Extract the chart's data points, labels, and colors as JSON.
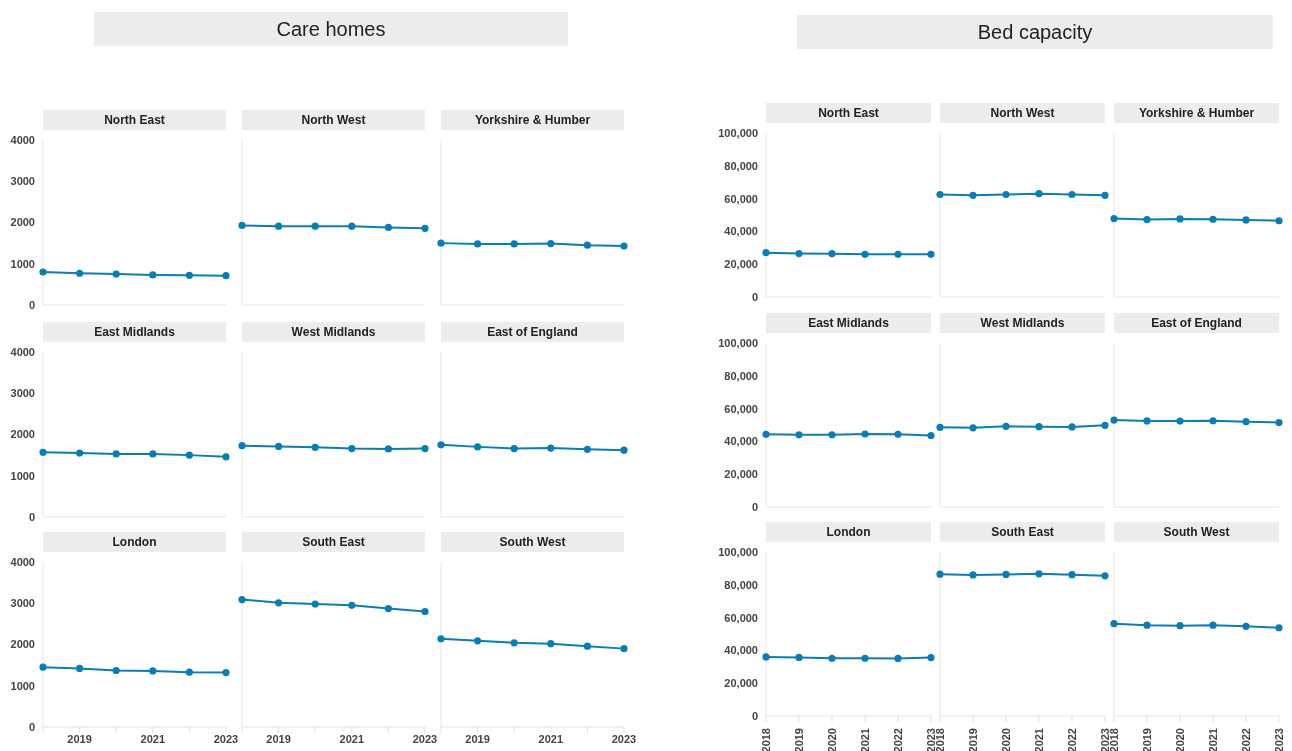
{
  "chart_data": [
    {
      "type": "other",
      "title": "Care homes"
    },
    {
      "type": "line",
      "title": "North East",
      "x": [
        2018,
        2019,
        2020,
        2021,
        2022,
        2023
      ],
      "values": [
        800,
        770,
        750,
        730,
        720,
        710
      ],
      "color": "#0b7db3",
      "marker": "circle",
      "xlim": [
        2018,
        2023
      ],
      "ylim": [
        0,
        4000
      ],
      "yticks": [
        0,
        1000,
        2000,
        3000,
        4000
      ],
      "tick_labels": "y"
    },
    {
      "type": "line",
      "title": "North West",
      "x": [
        2018,
        2019,
        2020,
        2021,
        2022,
        2023
      ],
      "values": [
        1930,
        1910,
        1910,
        1910,
        1880,
        1860
      ],
      "color": "#0b7db3",
      "marker": "circle",
      "xlim": [
        2018,
        2023
      ],
      "ylim": [
        0,
        4000
      ],
      "tick_labels": false
    },
    {
      "type": "line",
      "title": "Yorkshire & Humber",
      "x": [
        2018,
        2019,
        2020,
        2021,
        2022,
        2023
      ],
      "values": [
        1500,
        1480,
        1480,
        1490,
        1450,
        1430
      ],
      "color": "#0b7db3",
      "marker": "circle",
      "xlim": [
        2018,
        2023
      ],
      "ylim": [
        0,
        4000
      ],
      "tick_labels": false
    },
    {
      "type": "line",
      "title": "East Midlands",
      "x": [
        2018,
        2019,
        2020,
        2021,
        2022,
        2023
      ],
      "values": [
        1570,
        1550,
        1530,
        1530,
        1500,
        1460
      ],
      "color": "#0b7db3",
      "marker": "circle",
      "xlim": [
        2018,
        2023
      ],
      "ylim": [
        0,
        4000
      ],
      "yticks": [
        0,
        1000,
        2000,
        3000,
        4000
      ],
      "tick_labels": "y"
    },
    {
      "type": "line",
      "title": "West Midlands",
      "x": [
        2018,
        2019,
        2020,
        2021,
        2022,
        2023
      ],
      "values": [
        1730,
        1710,
        1690,
        1660,
        1650,
        1660
      ],
      "color": "#0b7db3",
      "marker": "circle",
      "xlim": [
        2018,
        2023
      ],
      "ylim": [
        0,
        4000
      ],
      "tick_labels": false
    },
    {
      "type": "line",
      "title": "East of England",
      "x": [
        2018,
        2019,
        2020,
        2021,
        2022,
        2023
      ],
      "values": [
        1750,
        1700,
        1660,
        1670,
        1640,
        1620
      ],
      "color": "#0b7db3",
      "marker": "circle",
      "xlim": [
        2018,
        2023
      ],
      "ylim": [
        0,
        4000
      ],
      "tick_labels": false
    },
    {
      "type": "line",
      "title": "London",
      "x": [
        2018,
        2019,
        2020,
        2021,
        2022,
        2023
      ],
      "values": [
        1450,
        1420,
        1370,
        1360,
        1330,
        1320
      ],
      "color": "#0b7db3",
      "marker": "circle",
      "xlim": [
        2018,
        2023
      ],
      "xticks": [
        {
          "value": 2018,
          "label": null
        },
        2019,
        {
          "value": 2020,
          "label": null
        },
        2021,
        {
          "value": 2022,
          "label": null
        },
        2023
      ],
      "ylim": [
        0,
        4000
      ],
      "yticks": [
        0,
        1000,
        2000,
        3000,
        4000
      ]
    },
    {
      "type": "line",
      "title": "South East",
      "x": [
        2018,
        2019,
        2020,
        2021,
        2022,
        2023
      ],
      "values": [
        3090,
        3010,
        2980,
        2950,
        2870,
        2800
      ],
      "color": "#0b7db3",
      "marker": "circle",
      "xlim": [
        2018,
        2023
      ],
      "xticks": [
        {
          "value": 2018,
          "label": null
        },
        2019,
        {
          "value": 2020,
          "label": null
        },
        2021,
        {
          "value": 2022,
          "label": null
        },
        2023
      ],
      "ylim": [
        0,
        4000
      ],
      "tick_labels": "x"
    },
    {
      "type": "line",
      "title": "South West",
      "x": [
        2018,
        2019,
        2020,
        2021,
        2022,
        2023
      ],
      "values": [
        2140,
        2090,
        2040,
        2020,
        1960,
        1900
      ],
      "color": "#0b7db3",
      "marker": "circle",
      "xlim": [
        2018,
        2023
      ],
      "xticks": [
        {
          "value": 2018,
          "label": null
        },
        2019,
        {
          "value": 2020,
          "label": null
        },
        2021,
        {
          "value": 2022,
          "label": null
        },
        2023
      ],
      "ylim": [
        0,
        4000
      ],
      "tick_labels": "x"
    },
    {
      "type": "other",
      "title": "Bed capacity"
    },
    {
      "type": "line",
      "title": "North East",
      "x": [
        2018,
        2019,
        2020,
        2021,
        2022,
        2023
      ],
      "values": [
        27000,
        26500,
        26400,
        26000,
        26000,
        26000
      ],
      "color": "#0b7db3",
      "marker": "circle",
      "xlim": [
        2018,
        2023
      ],
      "ylim": [
        0,
        100000
      ],
      "yticks": [
        0,
        {
          "value": 20000,
          "label": "20,000"
        },
        {
          "value": 40000,
          "label": "40,000"
        },
        {
          "value": 60000,
          "label": "60,000"
        },
        {
          "value": 80000,
          "label": "80,000"
        },
        {
          "value": 100000,
          "label": "100,000"
        }
      ],
      "tick_labels": "y"
    },
    {
      "type": "line",
      "title": "North West",
      "x": [
        2018,
        2019,
        2020,
        2021,
        2022,
        2023
      ],
      "values": [
        62500,
        62000,
        62500,
        63000,
        62500,
        62000
      ],
      "color": "#0b7db3",
      "marker": "circle",
      "xlim": [
        2018,
        2023
      ],
      "ylim": [
        0,
        100000
      ],
      "tick_labels": false
    },
    {
      "type": "line",
      "title": "Yorkshire & Humber",
      "x": [
        2018,
        2019,
        2020,
        2021,
        2022,
        2023
      ],
      "values": [
        47800,
        47200,
        47600,
        47400,
        47000,
        46500
      ],
      "color": "#0b7db3",
      "marker": "circle",
      "xlim": [
        2018,
        2023
      ],
      "ylim": [
        0,
        100000
      ],
      "tick_labels": false
    },
    {
      "type": "line",
      "title": "East Midlands",
      "x": [
        2018,
        2019,
        2020,
        2021,
        2022,
        2023
      ],
      "values": [
        44300,
        44000,
        44000,
        44500,
        44300,
        43600
      ],
      "color": "#0b7db3",
      "marker": "circle",
      "xlim": [
        2018,
        2023
      ],
      "ylim": [
        0,
        100000
      ],
      "yticks": [
        0,
        {
          "value": 20000,
          "label": "20,000"
        },
        {
          "value": 40000,
          "label": "40,000"
        },
        {
          "value": 60000,
          "label": "60,000"
        },
        {
          "value": 80000,
          "label": "80,000"
        },
        {
          "value": 100000,
          "label": "100,000"
        }
      ],
      "tick_labels": "y"
    },
    {
      "type": "line",
      "title": "West Midlands",
      "x": [
        2018,
        2019,
        2020,
        2021,
        2022,
        2023
      ],
      "values": [
        48600,
        48300,
        49200,
        49000,
        48800,
        49800
      ],
      "color": "#0b7db3",
      "marker": "circle",
      "xlim": [
        2018,
        2023
      ],
      "ylim": [
        0,
        100000
      ],
      "tick_labels": false
    },
    {
      "type": "line",
      "title": "East of England",
      "x": [
        2018,
        2019,
        2020,
        2021,
        2022,
        2023
      ],
      "values": [
        53000,
        52500,
        52400,
        52600,
        52000,
        51500
      ],
      "color": "#0b7db3",
      "marker": "circle",
      "xlim": [
        2018,
        2023
      ],
      "ylim": [
        0,
        100000
      ],
      "tick_labels": false
    },
    {
      "type": "line",
      "title": "London",
      "x": [
        2018,
        2019,
        2020,
        2021,
        2022,
        2023
      ],
      "values": [
        36000,
        35700,
        35200,
        35200,
        35100,
        35600
      ],
      "color": "#0b7db3",
      "marker": "circle",
      "xlim": [
        2018,
        2023
      ],
      "xticks": [
        2018,
        2019,
        2020,
        2021,
        2022,
        2023
      ],
      "ylim": [
        0,
        100000
      ],
      "yticks": [
        0,
        {
          "value": 20000,
          "label": "20,000"
        },
        {
          "value": 40000,
          "label": "40,000"
        },
        {
          "value": 60000,
          "label": "60,000"
        },
        {
          "value": 80000,
          "label": "80,000"
        },
        {
          "value": 100000,
          "label": "100,000"
        }
      ]
    },
    {
      "type": "line",
      "title": "South East",
      "x": [
        2018,
        2019,
        2020,
        2021,
        2022,
        2023
      ],
      "values": [
        86500,
        86000,
        86300,
        86700,
        86200,
        85500
      ],
      "color": "#0b7db3",
      "marker": "circle",
      "xlim": [
        2018,
        2023
      ],
      "xticks": [
        2018,
        2019,
        2020,
        2021,
        2022,
        2023
      ],
      "ylim": [
        0,
        100000
      ],
      "tick_labels": "x"
    },
    {
      "type": "line",
      "title": "South West",
      "x": [
        2018,
        2019,
        2020,
        2021,
        2022,
        2023
      ],
      "values": [
        56300,
        55400,
        55100,
        55400,
        54700,
        53800
      ],
      "color": "#0b7db3",
      "marker": "circle",
      "xlim": [
        2018,
        2023
      ],
      "xticks": [
        2018,
        2019,
        2020,
        2021,
        2022,
        2023
      ],
      "ylim": [
        0,
        100000
      ],
      "tick_labels": "x"
    }
  ]
}
